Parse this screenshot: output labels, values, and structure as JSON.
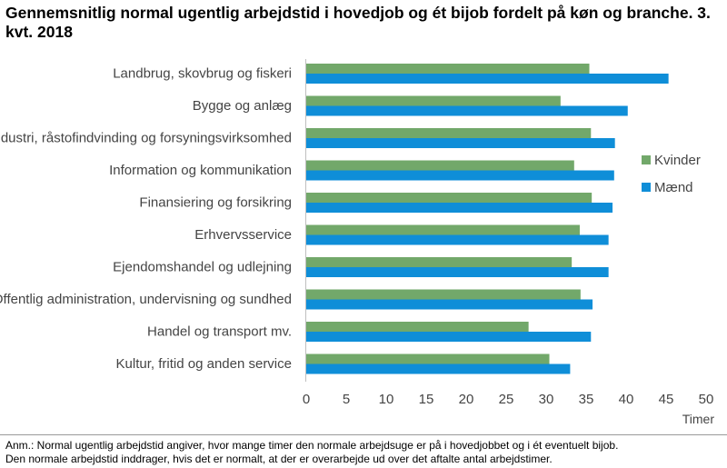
{
  "title": "Gennemsnitlig normal ugentlig arbejdstid i hovedjob og ét bijob fordelt på køn og branche. 3. kvt. 2018",
  "note": {
    "line1": "Anm.: Normal ugentlig arbejdstid angiver, hvor mange timer den normale arbejdsuge er på i hovedjobbet og i ét eventuelt bijob.",
    "line2": "Den normale arbejdstid inddrager, hvis det er normalt, at der er overarbejde ud over det aftalte antal arbejdstimer."
  },
  "colors": {
    "kvinder": "#72a86a",
    "maend": "#0f8ed8",
    "axis": "#bfbfbf",
    "text": "#444444"
  },
  "chart_data": {
    "type": "bar",
    "orientation": "horizontal",
    "categories": [
      "Landbrug, skovbrug og fiskeri",
      "Bygge og anlæg",
      "Industri, råstofindvinding og forsyningsvirksomhed",
      "Information og kommunikation",
      "Finansiering og forsikring",
      "Erhvervsservice",
      "Ejendomshandel og udlejning",
      "Offentlig administration, undervisning og sundhed",
      "Handel og transport mv.",
      "Kultur, fritid og anden service"
    ],
    "series": [
      {
        "name": "Kvinder",
        "values": [
          35.4,
          31.8,
          35.6,
          33.5,
          35.7,
          34.2,
          33.2,
          34.3,
          27.8,
          30.4
        ]
      },
      {
        "name": "Mænd",
        "values": [
          45.3,
          40.2,
          38.6,
          38.5,
          38.3,
          37.8,
          37.8,
          35.8,
          35.6,
          33.0
        ]
      }
    ],
    "xlabel": "Timer",
    "xlim": [
      0,
      50
    ],
    "xticks": [
      "0",
      "5",
      "10",
      "15",
      "20",
      "25",
      "30",
      "35",
      "40",
      "45",
      "50"
    ],
    "legend_position": "right",
    "grid": false
  }
}
